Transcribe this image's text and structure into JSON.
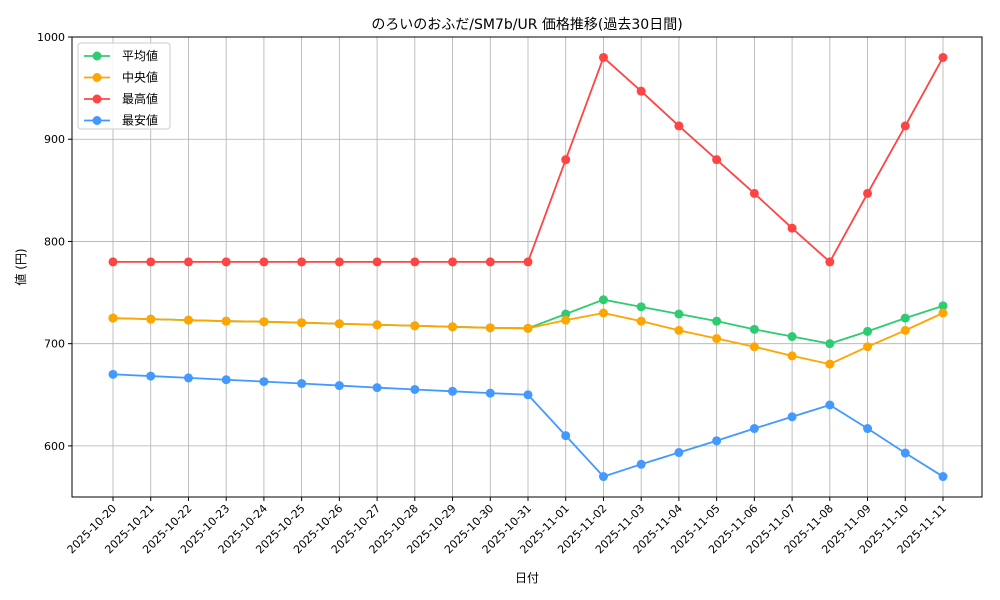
{
  "chart_data": {
    "type": "line",
    "title": "のろいのおふだ/SM7b/UR 価格推移(過去30日間)",
    "xlabel": "日付",
    "ylabel": "値 (円)",
    "ylim": [
      550,
      1000
    ],
    "yticks": [
      600,
      700,
      800,
      900,
      1000
    ],
    "grid": true,
    "legend_position": "top-left",
    "categories": [
      "2025-10-20",
      "2025-10-21",
      "2025-10-22",
      "2025-10-23",
      "2025-10-24",
      "2025-10-25",
      "2025-10-26",
      "2025-10-27",
      "2025-10-28",
      "2025-10-29",
      "2025-10-30",
      "2025-10-31",
      "2025-11-01",
      "2025-11-02",
      "2025-11-03",
      "2025-11-04",
      "2025-11-05",
      "2025-11-06",
      "2025-11-07",
      "2025-11-08",
      "2025-11-09",
      "2025-11-10",
      "2025-11-11"
    ],
    "series": [
      {
        "name": "平均値",
        "color": "#2ecc71",
        "values": [
          725,
          724,
          723,
          722,
          721.5,
          720.5,
          719.5,
          718.5,
          717.5,
          716.5,
          715.5,
          715,
          729,
          743,
          736,
          729,
          722,
          714,
          707,
          700,
          712,
          725,
          737
        ]
      },
      {
        "name": "中央値",
        "color": "#ffa500",
        "values": [
          725,
          724,
          723,
          722,
          721.5,
          720.5,
          719.5,
          718.5,
          717.5,
          716.5,
          715.5,
          715,
          723,
          730,
          722,
          713,
          705,
          697,
          688,
          680,
          697,
          713,
          730
        ]
      },
      {
        "name": "最高値",
        "color": "#ff4444",
        "values": [
          780,
          780,
          780,
          780,
          780,
          780,
          780,
          780,
          780,
          780,
          780,
          780,
          880,
          980,
          947,
          913,
          880,
          847,
          813,
          780,
          847,
          913,
          980
        ]
      },
      {
        "name": "最安値",
        "color": "#4499ff",
        "values": [
          670,
          668.3,
          666.5,
          664.7,
          662.9,
          661,
          659,
          657,
          655.2,
          653.4,
          651.6,
          650,
          610,
          570,
          582,
          593.5,
          605,
          617,
          628.5,
          640,
          617,
          593,
          570
        ]
      }
    ]
  }
}
